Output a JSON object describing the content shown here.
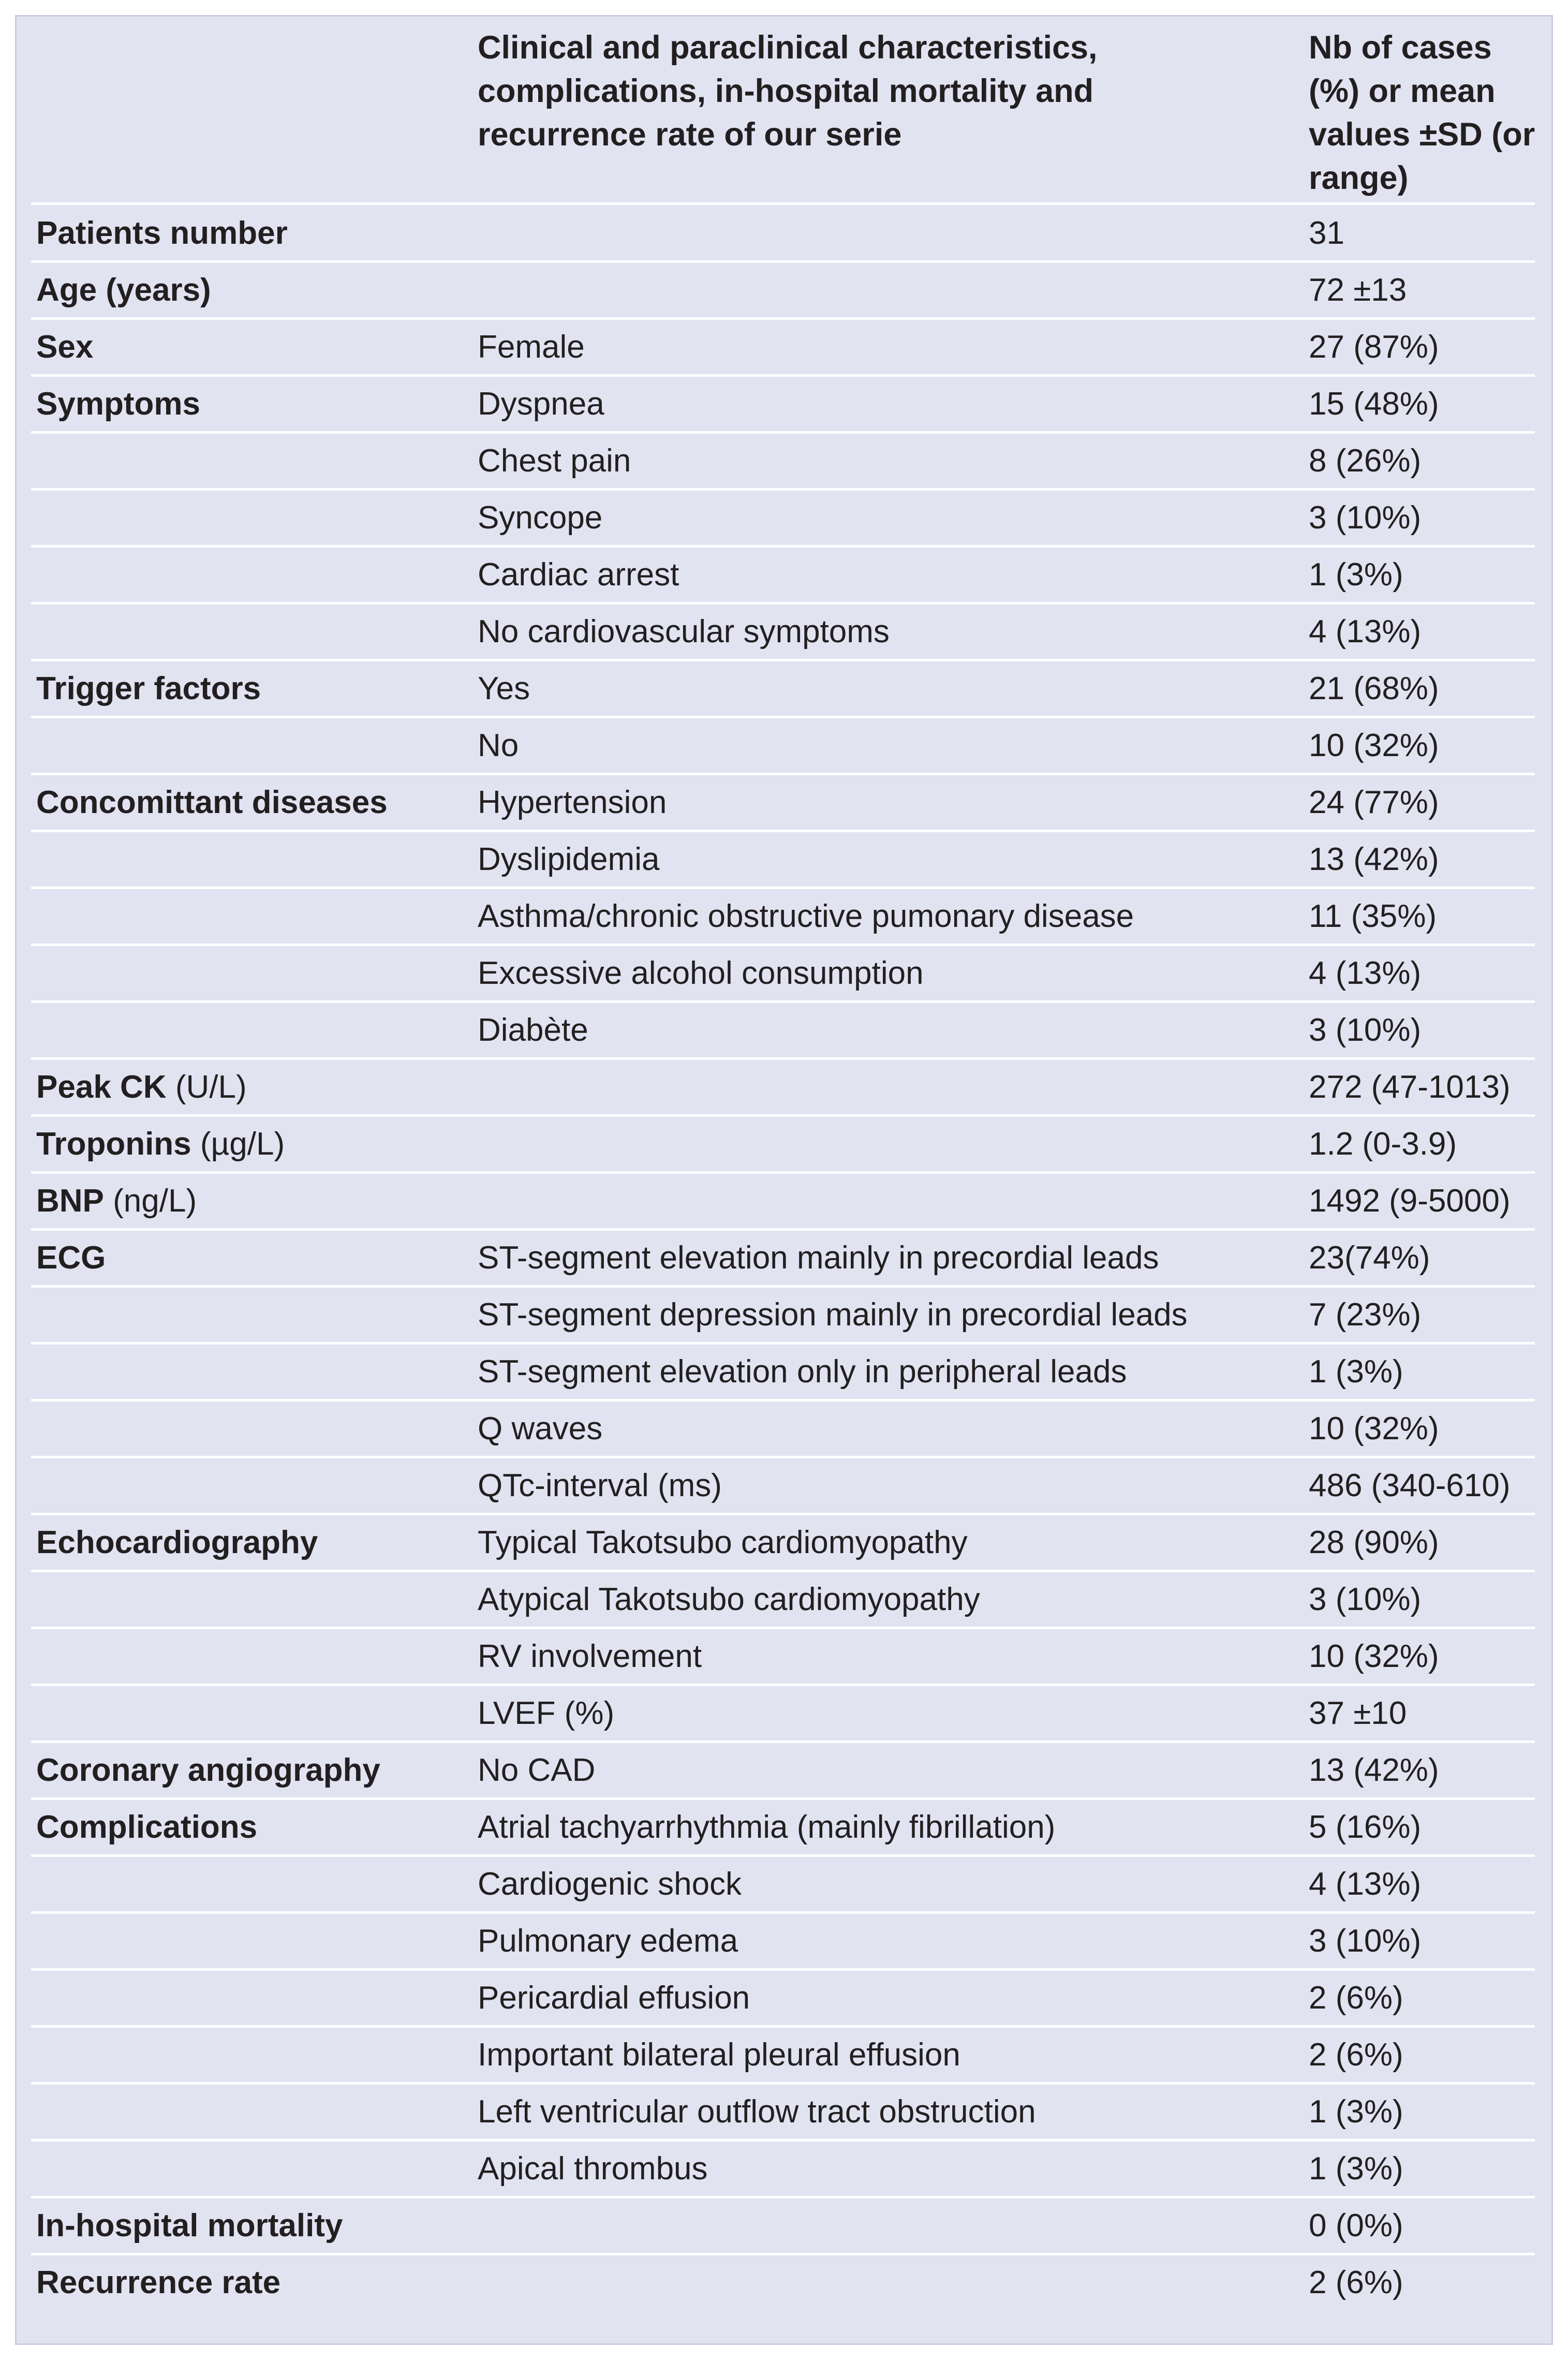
{
  "table": {
    "header": {
      "characteristic": "Clinical and paraclinical characteristics, complications, in-hospital mortality and recurrence rate of our serie",
      "value": "Nb of cases (%) or mean values ±SD (or range)"
    },
    "rows": [
      {
        "label": "Patients number",
        "value": "31"
      },
      {
        "label": "Age (years)",
        "value": "72 ±13"
      },
      {
        "label": "Sex",
        "item": "Female",
        "value": "27 (87%)"
      },
      {
        "label": "Symptoms",
        "item": "Dyspnea",
        "value": "15 (48%)"
      },
      {
        "item": "Chest pain",
        "value": "8 (26%)"
      },
      {
        "item": "Syncope",
        "value": "3 (10%)"
      },
      {
        "item": "Cardiac arrest",
        "value": "1 (3%)"
      },
      {
        "item": "No cardiovascular symptoms",
        "value": "4 (13%)"
      },
      {
        "label": "Trigger factors",
        "item": "Yes",
        "value": "21 (68%)"
      },
      {
        "item": "No",
        "value": "10 (32%)"
      },
      {
        "label": "Concomittant diseases",
        "item": "Hypertension",
        "value": "24 (77%)"
      },
      {
        "item": "Dyslipidemia",
        "value": "13 (42%)"
      },
      {
        "item": "Asthma/chronic obstructive pumonary disease",
        "value": "11 (35%)"
      },
      {
        "item": "Excessive alcohol consumption",
        "value": "4 (13%)"
      },
      {
        "item": "Diabète",
        "value": "3 (10%)"
      },
      {
        "label": "Peak CK",
        "unit": "(U/L)",
        "value": "272 (47-1013)"
      },
      {
        "label": "Troponins",
        "unit": "(µg/L)",
        "value": "1.2 (0-3.9)"
      },
      {
        "label": "BNP",
        "unit": "(ng/L)",
        "value": "1492 (9-5000)"
      },
      {
        "label": "ECG",
        "item": "ST-segment elevation mainly in precordial leads",
        "value": "23(74%)"
      },
      {
        "item": "ST-segment depression mainly in precordial leads",
        "value": "7 (23%)"
      },
      {
        "item": "ST-segment elevation only in peripheral leads",
        "value": "1 (3%)"
      },
      {
        "item": "Q waves",
        "value": "10 (32%)"
      },
      {
        "item": "QTc-interval (ms)",
        "value": "486 (340-610)"
      },
      {
        "label": "Echocardiography",
        "item": "Typical Takotsubo cardiomyopathy",
        "value": "28 (90%)"
      },
      {
        "item": "Atypical Takotsubo cardiomyopathy",
        "value": "3 (10%)"
      },
      {
        "item": "RV involvement",
        "value": "10 (32%)"
      },
      {
        "item": "LVEF (%)",
        "value": "37 ±10"
      },
      {
        "label": "Coronary angiography",
        "item": "No CAD",
        "value": "13 (42%)"
      },
      {
        "label": "Complications",
        "item": "Atrial tachyarrhythmia (mainly fibrillation)",
        "value": "5 (16%)"
      },
      {
        "item": "Cardiogenic shock",
        "value": "4 (13%)"
      },
      {
        "item": "Pulmonary edema",
        "value": "3 (10%)"
      },
      {
        "item": "Pericardial effusion",
        "value": "2 (6%)"
      },
      {
        "item": "Important bilateral pleural effusion",
        "value": "2 (6%)"
      },
      {
        "item": "Left ventricular outflow tract obstruction",
        "value": "1 (3%)"
      },
      {
        "item": "Apical thrombus",
        "value": "1 (3%)"
      },
      {
        "label": "In-hospital mortality",
        "value": "0 (0%)"
      },
      {
        "label": "Recurrence rate",
        "value": "2 (6%)"
      }
    ]
  }
}
